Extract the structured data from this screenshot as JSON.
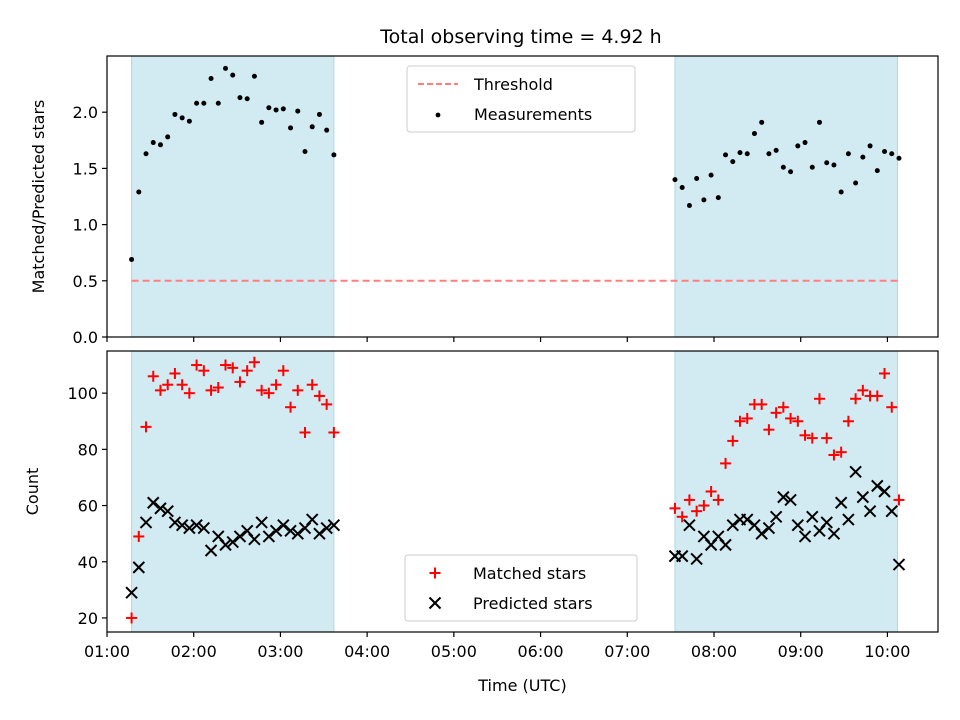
{
  "title": "Total observing time = 4.92 h",
  "colors": {
    "band": "#add8e6",
    "threshold": "#ff7f7f",
    "measurement": "#000000",
    "matched": "#ff0000",
    "predicted": "#000000"
  },
  "chart_data": [
    {
      "type": "scatter",
      "ylabel": "Matched/Predicted stars",
      "ylim": [
        0,
        2.5
      ],
      "yticks": [
        "0.0",
        "0.5",
        "1.0",
        "1.5",
        "2.0"
      ],
      "xlim": [
        "01:00",
        "10:35"
      ],
      "grid": false,
      "legend_position": "upper center",
      "observing_windows": [
        [
          "01:17",
          "03:37"
        ],
        [
          "07:33",
          "10:07"
        ]
      ],
      "threshold": {
        "name": "Threshold",
        "value": 0.5,
        "style": "dashed"
      },
      "series": [
        {
          "name": "Measurements",
          "points": [
            [
              "01:17",
              0.69
            ],
            [
              "01:22",
              1.29
            ],
            [
              "01:27",
              1.63
            ],
            [
              "01:32",
              1.73
            ],
            [
              "01:37",
              1.71
            ],
            [
              "01:42",
              1.78
            ],
            [
              "01:47",
              1.98
            ],
            [
              "01:52",
              1.95
            ],
            [
              "01:57",
              1.92
            ],
            [
              "02:02",
              2.08
            ],
            [
              "02:07",
              2.08
            ],
            [
              "02:12",
              2.3
            ],
            [
              "02:17",
              2.08
            ],
            [
              "02:22",
              2.39
            ],
            [
              "02:27",
              2.33
            ],
            [
              "02:32",
              2.13
            ],
            [
              "02:37",
              2.12
            ],
            [
              "02:42",
              2.32
            ],
            [
              "02:47",
              1.91
            ],
            [
              "02:52",
              2.04
            ],
            [
              "02:57",
              2.02
            ],
            [
              "03:02",
              2.03
            ],
            [
              "03:07",
              1.86
            ],
            [
              "03:12",
              2.01
            ],
            [
              "03:17",
              1.65
            ],
            [
              "03:22",
              1.87
            ],
            [
              "03:27",
              1.98
            ],
            [
              "03:32",
              1.84
            ],
            [
              "03:37",
              1.62
            ],
            [
              "07:33",
              1.4
            ],
            [
              "07:38",
              1.33
            ],
            [
              "07:43",
              1.17
            ],
            [
              "07:48",
              1.41
            ],
            [
              "07:53",
              1.22
            ],
            [
              "07:58",
              1.44
            ],
            [
              "08:03",
              1.24
            ],
            [
              "08:08",
              1.62
            ],
            [
              "08:13",
              1.56
            ],
            [
              "08:18",
              1.64
            ],
            [
              "08:23",
              1.63
            ],
            [
              "08:28",
              1.81
            ],
            [
              "08:33",
              1.91
            ],
            [
              "08:38",
              1.63
            ],
            [
              "08:43",
              1.66
            ],
            [
              "08:48",
              1.51
            ],
            [
              "08:53",
              1.47
            ],
            [
              "08:58",
              1.7
            ],
            [
              "09:03",
              1.73
            ],
            [
              "09:08",
              1.51
            ],
            [
              "09:13",
              1.91
            ],
            [
              "09:18",
              1.55
            ],
            [
              "09:23",
              1.53
            ],
            [
              "09:28",
              1.29
            ],
            [
              "09:33",
              1.63
            ],
            [
              "09:38",
              1.37
            ],
            [
              "09:43",
              1.6
            ],
            [
              "09:48",
              1.7
            ],
            [
              "09:53",
              1.48
            ],
            [
              "09:58",
              1.65
            ],
            [
              "10:03",
              1.63
            ],
            [
              "10:08",
              1.59
            ]
          ]
        }
      ]
    },
    {
      "type": "scatter",
      "xlabel": "Time (UTC)",
      "ylabel": "Count",
      "ylim": [
        15,
        115
      ],
      "yticks": [
        "20",
        "40",
        "60",
        "80",
        "100"
      ],
      "xlim": [
        "01:00",
        "10:35"
      ],
      "xticks": [
        "01:00",
        "02:00",
        "03:00",
        "04:00",
        "05:00",
        "06:00",
        "07:00",
        "08:00",
        "09:00",
        "10:00"
      ],
      "grid": false,
      "legend_position": "lower center",
      "observing_windows": [
        [
          "01:17",
          "03:37"
        ],
        [
          "07:33",
          "10:07"
        ]
      ],
      "series": [
        {
          "name": "Matched stars",
          "marker": "plus",
          "points": [
            [
              "01:17",
              20
            ],
            [
              "01:22",
              49
            ],
            [
              "01:27",
              88
            ],
            [
              "01:32",
              106
            ],
            [
              "01:37",
              101
            ],
            [
              "01:42",
              103
            ],
            [
              "01:47",
              107
            ],
            [
              "01:52",
              103
            ],
            [
              "01:57",
              100
            ],
            [
              "02:02",
              110
            ],
            [
              "02:07",
              108
            ],
            [
              "02:12",
              101
            ],
            [
              "02:17",
              102
            ],
            [
              "02:22",
              110
            ],
            [
              "02:27",
              109
            ],
            [
              "02:32",
              104
            ],
            [
              "02:37",
              108
            ],
            [
              "02:42",
              111
            ],
            [
              "02:47",
              101
            ],
            [
              "02:52",
              100
            ],
            [
              "02:57",
              103
            ],
            [
              "03:02",
              108
            ],
            [
              "03:07",
              95
            ],
            [
              "03:12",
              101
            ],
            [
              "03:17",
              86
            ],
            [
              "03:22",
              103
            ],
            [
              "03:27",
              99
            ],
            [
              "03:32",
              96
            ],
            [
              "03:37",
              86
            ],
            [
              "07:33",
              59
            ],
            [
              "07:38",
              56
            ],
            [
              "07:43",
              62
            ],
            [
              "07:48",
              58
            ],
            [
              "07:53",
              60
            ],
            [
              "07:58",
              65
            ],
            [
              "08:03",
              62
            ],
            [
              "08:08",
              75
            ],
            [
              "08:13",
              83
            ],
            [
              "08:18",
              90
            ],
            [
              "08:23",
              91
            ],
            [
              "08:28",
              96
            ],
            [
              "08:33",
              96
            ],
            [
              "08:38",
              87
            ],
            [
              "08:43",
              93
            ],
            [
              "08:48",
              95
            ],
            [
              "08:53",
              91
            ],
            [
              "08:58",
              90
            ],
            [
              "09:03",
              85
            ],
            [
              "09:08",
              84
            ],
            [
              "09:13",
              98
            ],
            [
              "09:18",
              84
            ],
            [
              "09:23",
              78
            ],
            [
              "09:28",
              79
            ],
            [
              "09:33",
              90
            ],
            [
              "09:38",
              98
            ],
            [
              "09:43",
              101
            ],
            [
              "09:48",
              99
            ],
            [
              "09:53",
              99
            ],
            [
              "09:58",
              107
            ],
            [
              "10:03",
              95
            ],
            [
              "10:08",
              62
            ]
          ]
        },
        {
          "name": "Predicted stars",
          "marker": "x",
          "points": [
            [
              "01:17",
              29
            ],
            [
              "01:22",
              38
            ],
            [
              "01:27",
              54
            ],
            [
              "01:32",
              61
            ],
            [
              "01:37",
              59
            ],
            [
              "01:42",
              58
            ],
            [
              "01:47",
              54
            ],
            [
              "01:52",
              53
            ],
            [
              "01:57",
              52
            ],
            [
              "02:02",
              53
            ],
            [
              "02:07",
              52
            ],
            [
              "02:12",
              44
            ],
            [
              "02:17",
              49
            ],
            [
              "02:22",
              46
            ],
            [
              "02:27",
              47
            ],
            [
              "02:32",
              49
            ],
            [
              "02:37",
              51
            ],
            [
              "02:42",
              48
            ],
            [
              "02:47",
              54
            ],
            [
              "02:52",
              49
            ],
            [
              "02:57",
              51
            ],
            [
              "03:02",
              53
            ],
            [
              "03:07",
              51
            ],
            [
              "03:12",
              50
            ],
            [
              "03:17",
              52
            ],
            [
              "03:22",
              55
            ],
            [
              "03:27",
              50
            ],
            [
              "03:32",
              52
            ],
            [
              "03:37",
              53
            ],
            [
              "07:33",
              42
            ],
            [
              "07:38",
              42
            ],
            [
              "07:43",
              53
            ],
            [
              "07:48",
              41
            ],
            [
              "07:53",
              49
            ],
            [
              "07:58",
              46
            ],
            [
              "08:03",
              49
            ],
            [
              "08:08",
              46
            ],
            [
              "08:13",
              53
            ],
            [
              "08:18",
              55
            ],
            [
              "08:23",
              55
            ],
            [
              "08:28",
              53
            ],
            [
              "08:33",
              50
            ],
            [
              "08:38",
              52
            ],
            [
              "08:43",
              56
            ],
            [
              "08:48",
              63
            ],
            [
              "08:53",
              62
            ],
            [
              "08:58",
              53
            ],
            [
              "09:03",
              49
            ],
            [
              "09:08",
              56
            ],
            [
              "09:13",
              51
            ],
            [
              "09:18",
              54
            ],
            [
              "09:23",
              50
            ],
            [
              "09:28",
              61
            ],
            [
              "09:33",
              55
            ],
            [
              "09:38",
              72
            ],
            [
              "09:43",
              63
            ],
            [
              "09:48",
              58
            ],
            [
              "09:53",
              67
            ],
            [
              "09:58",
              65
            ],
            [
              "10:03",
              58
            ],
            [
              "10:08",
              39
            ]
          ]
        }
      ]
    }
  ]
}
